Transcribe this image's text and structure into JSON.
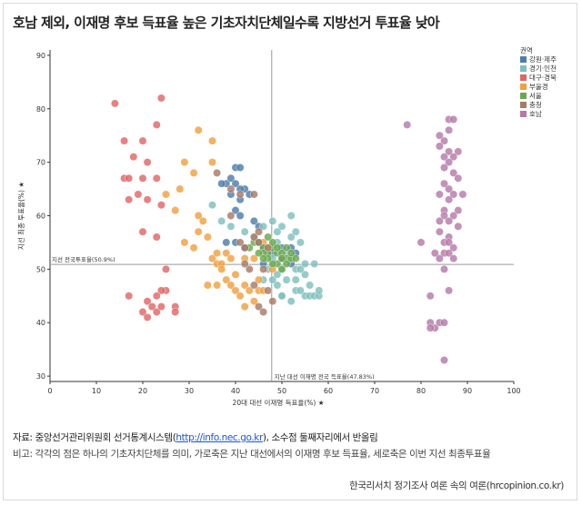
{
  "title": "호남 제외, 이재명 후보 득표율 높은 기초자치단체일수록 지방선거 투표율 낮아",
  "footer": {
    "source_prefix": "자료: 중앙선거관리위원회 선거통계시스템(",
    "source_link": "http://info.nec.go.kr",
    "source_suffix": "), 소수점 둘째자리에서 반올림",
    "note": "비고: 각각의 점은 하나의 기초자치단체를 의미, 가로축은 지난 대선에서의 이재명 후보 득표율, 세로축은 이번 지선 최종투표율",
    "credit": "한국리서치 정기조사 여론 속의 여론(hrcopinion.co.kr)"
  },
  "chart_data": {
    "type": "scatter",
    "title": "",
    "xlabel": "20대 대선 이재명 득표율(%) ★",
    "ylabel": "지선 최종 투표율(%) ★",
    "xlim": [
      0,
      100
    ],
    "ylim": [
      29,
      91
    ],
    "x_ticks": [
      0,
      10,
      20,
      30,
      40,
      50,
      60,
      70,
      80,
      90,
      100
    ],
    "y_ticks": [
      30,
      40,
      50,
      60,
      70,
      80,
      90
    ],
    "grid": false,
    "legend_title": "권역",
    "legend_position": "top-right",
    "reference_lines": {
      "vertical": {
        "x": 47.8,
        "label": "지난 대선 이재명 전국 득표율(47.83%)"
      },
      "horizontal": {
        "y": 50.9,
        "label": "지선 전국투표율(50.9%)"
      }
    },
    "series": [
      {
        "name": "강원·제주",
        "color": "#4e7dab",
        "points": [
          [
            38,
            66
          ],
          [
            39,
            67
          ],
          [
            40,
            69
          ],
          [
            41,
            69
          ],
          [
            40,
            66
          ],
          [
            42,
            65
          ],
          [
            39,
            64
          ],
          [
            41,
            63
          ],
          [
            43,
            64
          ],
          [
            40,
            61
          ],
          [
            41,
            60
          ],
          [
            44,
            59
          ],
          [
            45,
            58
          ],
          [
            38,
            55
          ],
          [
            40,
            55
          ],
          [
            42,
            54
          ],
          [
            46,
            54
          ],
          [
            48,
            53
          ],
          [
            50,
            52
          ],
          [
            52,
            51
          ],
          [
            53,
            53
          ],
          [
            52,
            54
          ],
          [
            50,
            54
          ],
          [
            46,
            51
          ],
          [
            37,
            66
          ],
          [
            41,
            65
          ]
        ]
      },
      {
        "name": "경기·인천",
        "color": "#7ec0bd",
        "points": [
          [
            35,
            62
          ],
          [
            37,
            59
          ],
          [
            39,
            58
          ],
          [
            42,
            57
          ],
          [
            44,
            56
          ],
          [
            46,
            58
          ],
          [
            48,
            59
          ],
          [
            50,
            58
          ],
          [
            52,
            56
          ],
          [
            53,
            57
          ],
          [
            54,
            55
          ],
          [
            52,
            52
          ],
          [
            53,
            50
          ],
          [
            51,
            48
          ],
          [
            55,
            49
          ],
          [
            56,
            47
          ],
          [
            57,
            51
          ],
          [
            53,
            46
          ],
          [
            54,
            46
          ],
          [
            55,
            45
          ],
          [
            56,
            45
          ],
          [
            57,
            45
          ],
          [
            58,
            45
          ],
          [
            52,
            44
          ],
          [
            50,
            45
          ],
          [
            49,
            47
          ],
          [
            48,
            48
          ],
          [
            50,
            50
          ],
          [
            47,
            50
          ],
          [
            46,
            48
          ],
          [
            48,
            52
          ],
          [
            49,
            55
          ],
          [
            52,
            60
          ],
          [
            51,
            53
          ],
          [
            54,
            50
          ],
          [
            55,
            51
          ],
          [
            49,
            49
          ],
          [
            47,
            53
          ],
          [
            49,
            57
          ],
          [
            50,
            45
          ],
          [
            53,
            48
          ],
          [
            58,
            46
          ]
        ]
      },
      {
        "name": "대구·경북",
        "color": "#e06666",
        "points": [
          [
            14,
            81
          ],
          [
            24,
            82
          ],
          [
            23,
            77
          ],
          [
            16,
            74
          ],
          [
            20,
            74
          ],
          [
            18,
            71
          ],
          [
            16,
            67
          ],
          [
            17,
            67
          ],
          [
            20,
            67
          ],
          [
            21,
            70
          ],
          [
            23,
            67
          ],
          [
            19,
            64
          ],
          [
            17,
            63
          ],
          [
            21,
            63
          ],
          [
            24,
            62
          ],
          [
            20,
            57
          ],
          [
            23,
            56
          ],
          [
            25,
            50
          ],
          [
            25,
            46
          ],
          [
            24,
            46
          ],
          [
            23,
            45
          ],
          [
            17,
            45
          ],
          [
            21,
            44
          ],
          [
            22,
            43
          ],
          [
            23,
            42
          ],
          [
            20,
            42
          ],
          [
            21,
            41
          ],
          [
            24,
            43
          ],
          [
            27,
            43
          ],
          [
            27,
            42
          ]
        ]
      },
      {
        "name": "부울경",
        "color": "#f0a040",
        "points": [
          [
            29,
            70
          ],
          [
            32,
            76
          ],
          [
            35,
            74
          ],
          [
            28,
            65
          ],
          [
            25,
            64
          ],
          [
            31,
            68
          ],
          [
            35,
            70
          ],
          [
            32,
            60
          ],
          [
            33,
            59
          ],
          [
            32,
            57
          ],
          [
            29,
            55
          ],
          [
            34,
            56
          ],
          [
            31,
            54
          ],
          [
            35,
            52
          ],
          [
            36,
            51
          ],
          [
            37,
            51
          ],
          [
            38,
            53
          ],
          [
            39,
            52
          ],
          [
            37,
            50
          ],
          [
            38,
            48
          ],
          [
            36,
            47
          ],
          [
            39,
            47
          ],
          [
            40,
            46
          ],
          [
            42,
            47
          ],
          [
            43,
            46
          ],
          [
            45,
            46
          ],
          [
            41,
            45
          ],
          [
            44,
            44
          ],
          [
            46,
            46
          ],
          [
            45,
            48
          ],
          [
            47,
            54
          ],
          [
            46,
            55
          ],
          [
            44,
            52
          ],
          [
            48,
            50
          ],
          [
            42,
            52
          ],
          [
            40,
            49
          ],
          [
            36,
            53
          ],
          [
            27,
            61
          ],
          [
            34,
            47
          ],
          [
            42,
            43
          ]
        ]
      },
      {
        "name": "서울",
        "color": "#6aa84f",
        "points": [
          [
            43,
            54
          ],
          [
            44,
            55
          ],
          [
            45,
            55
          ],
          [
            46,
            54
          ],
          [
            47,
            53
          ],
          [
            48,
            54
          ],
          [
            49,
            53
          ],
          [
            50,
            53
          ],
          [
            51,
            52
          ],
          [
            52,
            52
          ],
          [
            49,
            51
          ],
          [
            50,
            52
          ],
          [
            51,
            54
          ],
          [
            46,
            53
          ],
          [
            48,
            55
          ],
          [
            47,
            56
          ],
          [
            50,
            50
          ],
          [
            53,
            52
          ],
          [
            49,
            54
          ],
          [
            45,
            53
          ],
          [
            51,
            51
          ],
          [
            48,
            51
          ],
          [
            52,
            53
          ],
          [
            47,
            52
          ],
          [
            46,
            52
          ]
        ]
      },
      {
        "name": "충청",
        "color": "#a77a68",
        "points": [
          [
            36,
            68
          ],
          [
            39,
            65
          ],
          [
            41,
            64
          ],
          [
            44,
            64
          ],
          [
            39,
            60
          ],
          [
            45,
            57
          ],
          [
            44,
            56
          ],
          [
            45,
            55
          ],
          [
            43,
            50
          ],
          [
            42,
            51
          ],
          [
            46,
            50
          ],
          [
            44,
            47
          ],
          [
            47,
            46
          ],
          [
            45,
            43
          ],
          [
            46,
            42
          ],
          [
            48,
            44
          ],
          [
            41,
            55
          ],
          [
            47,
            54
          ],
          [
            42,
            54
          ]
        ]
      },
      {
        "name": "호남",
        "color": "#b57aa8",
        "points": [
          [
            77,
            77
          ],
          [
            84,
            75
          ],
          [
            85,
            74
          ],
          [
            86,
            76
          ],
          [
            86,
            78
          ],
          [
            87,
            78
          ],
          [
            84,
            73
          ],
          [
            86,
            72
          ],
          [
            85,
            71
          ],
          [
            88,
            72
          ],
          [
            87,
            71
          ],
          [
            86,
            70
          ],
          [
            85,
            69
          ],
          [
            87,
            68
          ],
          [
            88,
            67
          ],
          [
            85,
            66
          ],
          [
            86,
            65
          ],
          [
            84,
            64
          ],
          [
            87,
            64
          ],
          [
            89,
            64
          ],
          [
            86,
            63
          ],
          [
            85,
            61
          ],
          [
            88,
            61
          ],
          [
            87,
            60
          ],
          [
            85,
            60
          ],
          [
            84,
            59
          ],
          [
            86,
            59
          ],
          [
            88,
            58
          ],
          [
            84,
            57
          ],
          [
            86,
            56
          ],
          [
            85,
            55
          ],
          [
            86,
            55
          ],
          [
            87,
            54
          ],
          [
            80,
            55
          ],
          [
            83,
            53
          ],
          [
            85,
            53
          ],
          [
            86,
            53
          ],
          [
            84,
            52
          ],
          [
            87,
            52
          ],
          [
            85,
            50
          ],
          [
            86,
            46
          ],
          [
            82,
            45
          ],
          [
            82,
            40
          ],
          [
            83,
            39
          ],
          [
            84,
            40
          ],
          [
            85,
            40
          ],
          [
            82,
            39
          ],
          [
            85,
            33
          ]
        ]
      }
    ]
  }
}
